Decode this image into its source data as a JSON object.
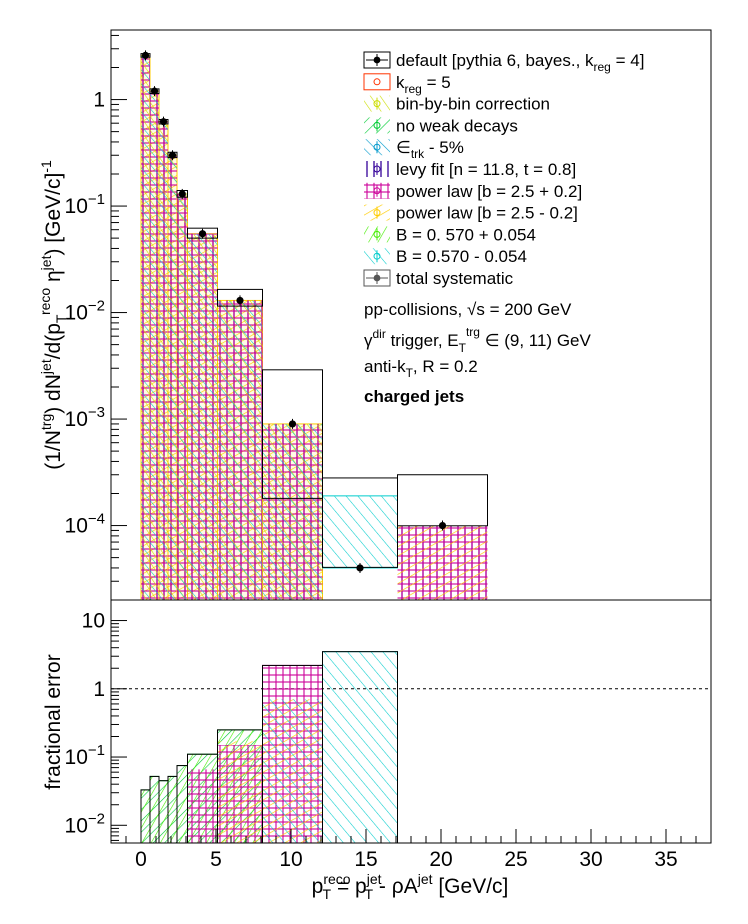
{
  "chart_data": [
    {
      "panel": "spectrum",
      "type": "bar",
      "y_scale": "log",
      "ylim": [
        2e-05,
        4.5
      ],
      "xlim": [
        -2,
        38
      ],
      "ylabel": {
        "prefix": "(1/N",
        "sup1": "trg",
        "mid1": ") dN",
        "sup2": "jet",
        "mid2": "/d(p",
        "sub3": "T",
        "sup3": "reco",
        "mid3": " η",
        "sup4": "jet",
        "mid4": ") [GeV/c]",
        "sup5": "-1"
      },
      "y_ticks": [
        {
          "value": 1,
          "base": "1",
          "exp": ""
        },
        {
          "value": 0.1,
          "base": "10",
          "exp": "−1"
        },
        {
          "value": 0.01,
          "base": "10",
          "exp": "−2"
        },
        {
          "value": 0.001,
          "base": "10",
          "exp": "−3"
        },
        {
          "value": 0.0001,
          "base": "10",
          "exp": "−4"
        }
      ],
      "bins": [
        {
          "lo": 0.0,
          "hi": 0.6,
          "value": 2.6,
          "total_sys_lo": 2.5,
          "total_sys_hi": 2.7
        },
        {
          "lo": 0.6,
          "hi": 1.2,
          "value": 1.2,
          "total_sys_lo": 1.14,
          "total_sys_hi": 1.26
        },
        {
          "lo": 1.2,
          "hi": 1.8,
          "value": 0.62,
          "total_sys_lo": 0.59,
          "total_sys_hi": 0.65
        },
        {
          "lo": 1.8,
          "hi": 2.4,
          "value": 0.3,
          "total_sys_lo": 0.285,
          "total_sys_hi": 0.32
        },
        {
          "lo": 2.4,
          "hi": 3.1,
          "value": 0.13,
          "total_sys_lo": 0.121,
          "total_sys_hi": 0.14
        },
        {
          "lo": 3.1,
          "hi": 5.1,
          "value": 0.055,
          "total_sys_lo": 0.05,
          "total_sys_hi": 0.062
        },
        {
          "lo": 5.1,
          "hi": 8.1,
          "value": 0.013,
          "total_sys_lo": 0.0115,
          "total_sys_hi": 0.0165
        },
        {
          "lo": 8.1,
          "hi": 12.1,
          "value": 0.0009,
          "total_sys_lo": 0.00018,
          "total_sys_hi": 0.0029
        },
        {
          "lo": 12.1,
          "hi": 17.1,
          "value": 4e-05,
          "total_sys_lo": 4.05e-05,
          "total_sys_hi": 0.00028
        },
        {
          "lo": 17.1,
          "hi": 23.1,
          "value": 0.0001,
          "total_sys_lo": 9.95e-05,
          "total_sys_hi": 0.0003
        }
      ],
      "legend": [
        {
          "style": "default",
          "color": "#000000",
          "parts": [
            {
              "t": "default [pythia 6, bayes., k"
            },
            {
              "t": "reg",
              "sub": true
            },
            {
              "t": " = 4]"
            }
          ]
        },
        {
          "style": "kreg",
          "color": "#ff3300",
          "parts": [
            {
              "t": "k"
            },
            {
              "t": "reg",
              "sub": true
            },
            {
              "t": " = 5"
            }
          ]
        },
        {
          "style": "hatchA",
          "color": "#ccdd00",
          "parts": [
            {
              "t": "bin-by-bin correction"
            }
          ]
        },
        {
          "style": "hatchB",
          "color": "#00cc33",
          "parts": [
            {
              "t": "no weak decays"
            }
          ]
        },
        {
          "style": "hatchC",
          "color": "#0099cc",
          "parts": [
            {
              "t": "∈"
            },
            {
              "t": "trk",
              "sub": true
            },
            {
              "t": " - 5%"
            }
          ]
        },
        {
          "style": "hatchD",
          "color": "#330099",
          "parts": [
            {
              "t": "levy fit [n = 11.8, t = 0.8]"
            }
          ]
        },
        {
          "style": "hatchE",
          "color": "#cc0099",
          "parts": [
            {
              "t": "power law [b = 2.5 + 0.2]"
            }
          ]
        },
        {
          "style": "hatchF",
          "color": "#ffcc00",
          "parts": [
            {
              "t": "power law [b = 2.5 - 0.2]"
            }
          ]
        },
        {
          "style": "hatchG",
          "color": "#44ee00",
          "parts": [
            {
              "t": "B = 0. 570 + 0.054"
            }
          ]
        },
        {
          "style": "hatchH",
          "color": "#00cccc",
          "parts": [
            {
              "t": "B = 0.570 - 0.054"
            }
          ]
        },
        {
          "style": "total",
          "color": "#555555",
          "parts": [
            {
              "t": "total systematic"
            }
          ]
        }
      ],
      "info": {
        "collisions": "pp-collisions, ",
        "sqrt_s": "√s",
        "energy": " = 200 GeV",
        "trigger_gamma": "γ",
        "trigger_sup": "dir",
        "trigger_mid": " trigger, E",
        "trigger_sub": "T",
        "trigger_sup2": "trg",
        "trigger_range": " ∈ (9, 11) GeV",
        "jet_algo": "anti-k",
        "jet_algo_sub": "T",
        "jet_radius": ", R = 0.2",
        "jet_type": "charged jets"
      }
    },
    {
      "panel": "fractional_error",
      "type": "bar",
      "y_scale": "log",
      "ylim": [
        0.0055,
        20
      ],
      "xlim": [
        -2,
        38
      ],
      "ylabel": "fractional error",
      "reference_line": 1,
      "y_ticks": [
        {
          "value": 10,
          "base": "10",
          "exp": ""
        },
        {
          "value": 1,
          "base": "1",
          "exp": ""
        },
        {
          "value": 0.1,
          "base": "10",
          "exp": "−1"
        },
        {
          "value": 0.01,
          "base": "10",
          "exp": "−2"
        }
      ],
      "x_ticks": [
        0,
        5,
        10,
        15,
        20,
        25,
        30,
        35
      ],
      "xlabel": {
        "p1": "p",
        "p1_sup": "reco",
        "p1_sub": "T",
        "eq": " = p",
        "p2_sup": "jet",
        "p2_sub": "T",
        "rho": " - ρA",
        "rho_sup": "jet",
        "unit": " [GeV/c]"
      },
      "bins": [
        {
          "lo": 0.0,
          "hi": 0.6,
          "total": 0.033
        },
        {
          "lo": 0.6,
          "hi": 1.2,
          "total": 0.052
        },
        {
          "lo": 1.2,
          "hi": 1.8,
          "total": 0.045
        },
        {
          "lo": 1.8,
          "hi": 2.4,
          "total": 0.052
        },
        {
          "lo": 2.4,
          "hi": 3.1,
          "total": 0.075
        },
        {
          "lo": 3.1,
          "hi": 5.1,
          "total": 0.11
        },
        {
          "lo": 5.1,
          "hi": 8.1,
          "total": 0.25
        },
        {
          "lo": 8.1,
          "hi": 12.1,
          "total": 2.2
        },
        {
          "lo": 12.1,
          "hi": 17.1,
          "total": 3.5
        }
      ]
    }
  ]
}
